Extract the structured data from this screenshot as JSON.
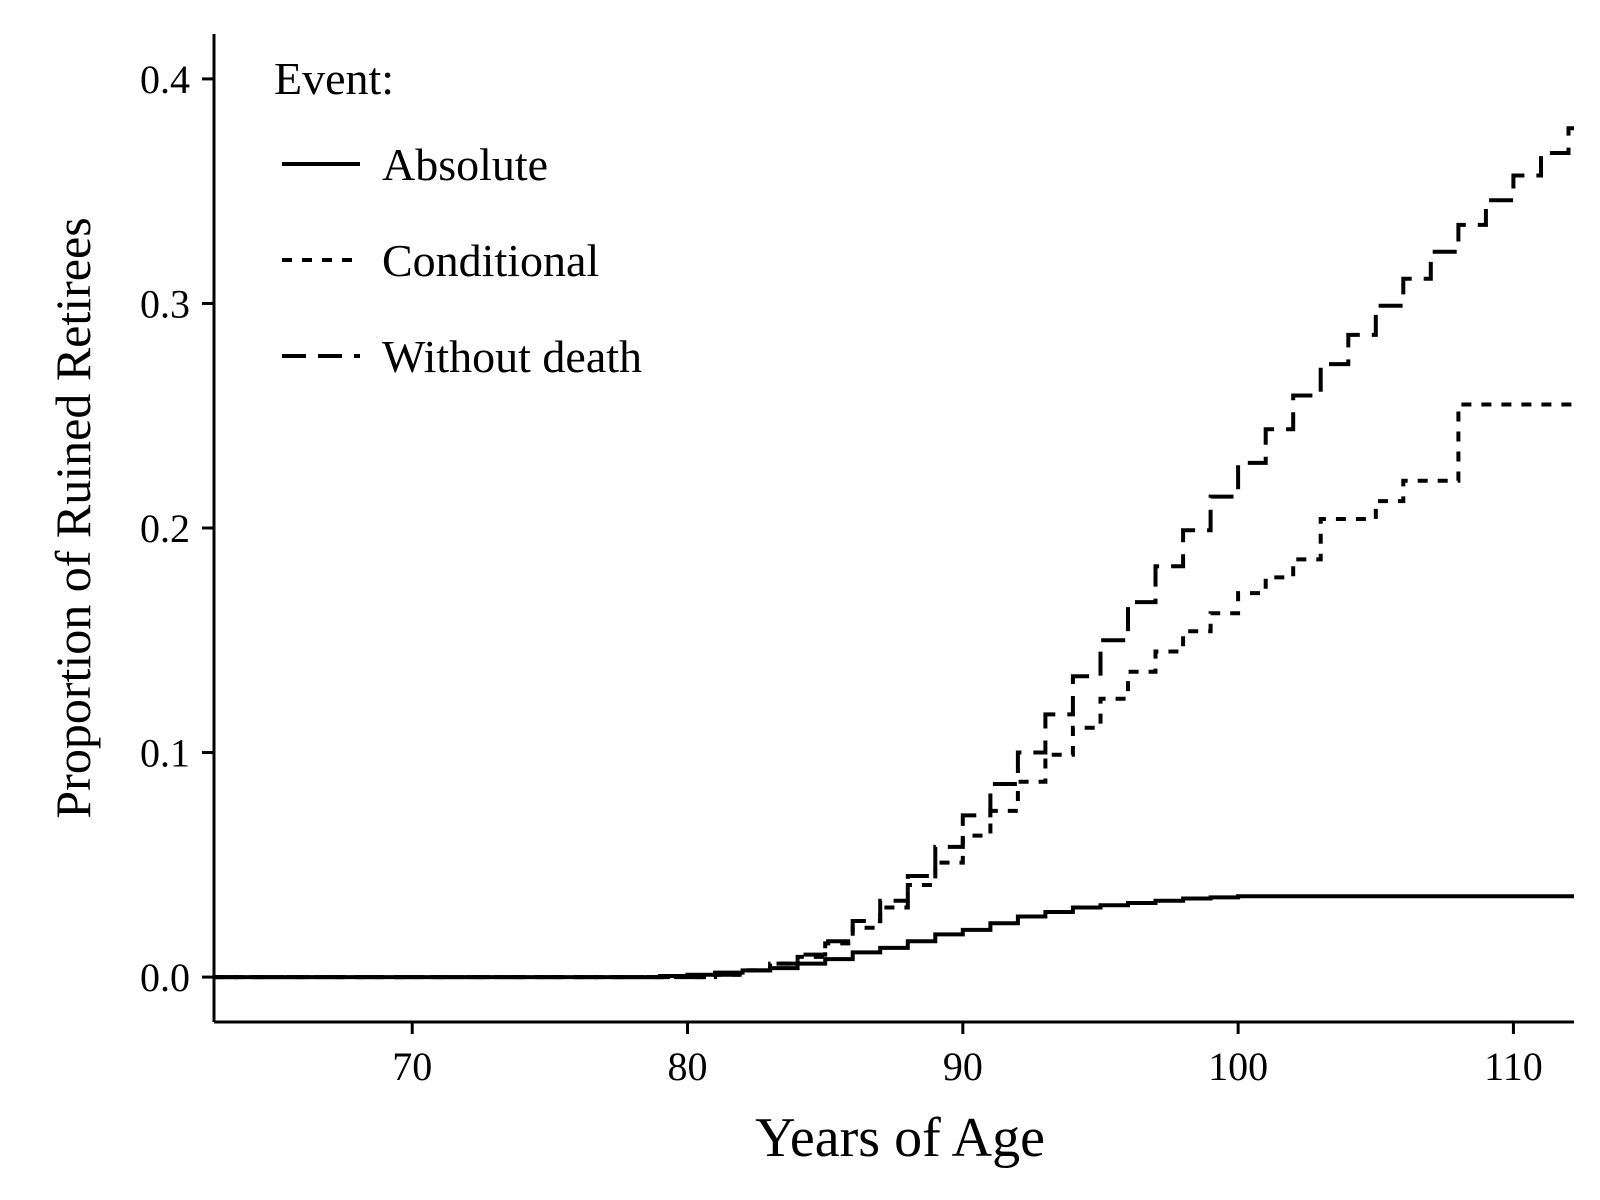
{
  "chart_data": {
    "type": "line",
    "step": true,
    "xlabel": "Years of Age",
    "ylabel": "Proportion of Ruined Retirees",
    "xlim": [
      62.8,
      112.2
    ],
    "ylim": [
      -0.02,
      0.42
    ],
    "xticks": [
      70,
      80,
      90,
      100,
      110
    ],
    "yticks": [
      0.0,
      0.1,
      0.2,
      0.3,
      0.4
    ],
    "xtick_labels": [
      "70",
      "80",
      "90",
      "100",
      "110"
    ],
    "ytick_labels": [
      "0.0",
      "0.1",
      "0.2",
      "0.3",
      "0.4"
    ],
    "grid": false,
    "legend": {
      "title": "Event:",
      "position": "top-left"
    },
    "series": [
      {
        "name": "Absolute",
        "style": "solid",
        "x": [
          62.8,
          78,
          79,
          80,
          81,
          82,
          83,
          84,
          85,
          86,
          87,
          88,
          89,
          90,
          91,
          92,
          93,
          94,
          95,
          96,
          97,
          98,
          99,
          100,
          102,
          105,
          112.2
        ],
        "y": [
          0,
          0,
          0.0005,
          0.001,
          0.002,
          0.003,
          0.004,
          0.006,
          0.008,
          0.011,
          0.013,
          0.016,
          0.019,
          0.021,
          0.024,
          0.027,
          0.029,
          0.031,
          0.032,
          0.033,
          0.034,
          0.035,
          0.0355,
          0.036,
          0.036,
          0.036,
          0.036
        ]
      },
      {
        "name": "Conditional",
        "style": "dotted",
        "x": [
          62.8,
          80,
          81,
          82,
          83,
          84,
          85,
          86,
          87,
          88,
          89,
          90,
          91,
          92,
          93,
          94,
          95,
          96,
          97,
          98,
          99,
          100,
          101,
          102,
          103,
          104,
          105,
          106,
          107,
          108,
          109,
          110,
          111,
          112.2
        ],
        "y": [
          0,
          0,
          0.001,
          0.003,
          0.006,
          0.009,
          0.015,
          0.022,
          0.031,
          0.041,
          0.051,
          0.063,
          0.074,
          0.087,
          0.099,
          0.111,
          0.124,
          0.136,
          0.145,
          0.154,
          0.162,
          0.171,
          0.178,
          0.186,
          0.204,
          0.204,
          0.212,
          0.221,
          0.221,
          0.255,
          0.255,
          0.255,
          0.255,
          0.255
        ]
      },
      {
        "name": "Without death",
        "style": "dashed",
        "x": [
          62.8,
          80,
          81,
          82,
          83,
          84,
          85,
          86,
          87,
          88,
          89,
          90,
          91,
          92,
          93,
          94,
          95,
          96,
          97,
          98,
          99,
          100,
          101,
          102,
          103,
          104,
          105,
          106,
          107,
          108,
          109,
          110,
          111,
          112,
          112.2
        ],
        "y": [
          0,
          0,
          0.001,
          0.003,
          0.006,
          0.01,
          0.016,
          0.025,
          0.034,
          0.045,
          0.058,
          0.072,
          0.086,
          0.1,
          0.117,
          0.134,
          0.15,
          0.167,
          0.183,
          0.199,
          0.214,
          0.229,
          0.244,
          0.259,
          0.273,
          0.286,
          0.299,
          0.311,
          0.323,
          0.335,
          0.346,
          0.357,
          0.367,
          0.378,
          0.378
        ]
      }
    ]
  }
}
